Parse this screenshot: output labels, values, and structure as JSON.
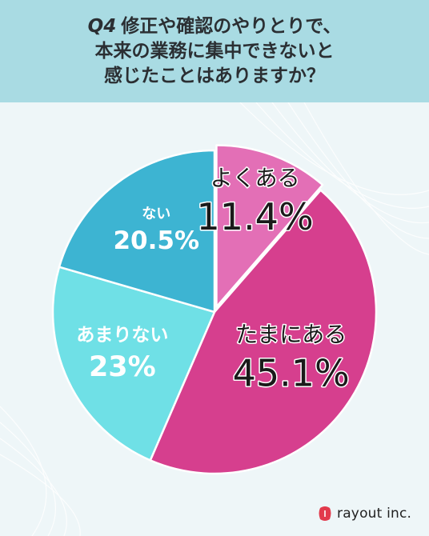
{
  "header": {
    "question_number": "Q4",
    "line1": "修正や確認のやりとりで、",
    "line2": "本来の業務に集中できないと",
    "line3": "感じたことはありますか？"
  },
  "chart_data": {
    "type": "pie",
    "start_angle_deg": 0,
    "direction": "clockwise",
    "slices": [
      {
        "label": "よくある",
        "value": 11.4,
        "value_text": "11.4%",
        "color": "#e36fb6"
      },
      {
        "label": "たまにある",
        "value": 45.1,
        "value_text": "45.1%",
        "color": "#d63f8e"
      },
      {
        "label": "あまりない",
        "value": 23,
        "value_text": "23%",
        "color": "#6fe0e6"
      },
      {
        "label": "ない",
        "value": 20.5,
        "value_text": "20.5%",
        "color": "#3db4d2"
      }
    ],
    "exploded_slice": "よくある"
  },
  "brand": {
    "name": "rayout inc.",
    "icon": "rayout-logo-icon",
    "color": "#e23a4c"
  }
}
